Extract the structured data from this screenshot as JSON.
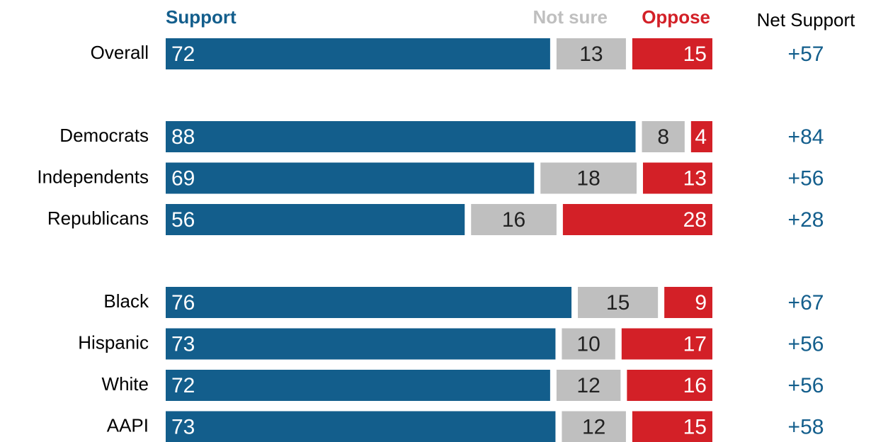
{
  "chart_data": {
    "type": "stacked-bar-horizontal",
    "categories": [
      "Overall",
      null,
      "Democrats",
      "Independents",
      "Republicans",
      null,
      "Black",
      "Hispanic",
      "White",
      "AAPI"
    ],
    "series": [
      {
        "name": "Support",
        "color": "#135e8c",
        "values": [
          72,
          null,
          88,
          69,
          56,
          null,
          76,
          73,
          72,
          73
        ]
      },
      {
        "name": "Not sure",
        "color": "#bfbfbf",
        "values": [
          13,
          null,
          8,
          18,
          16,
          null,
          15,
          10,
          12,
          12
        ]
      },
      {
        "name": "Oppose",
        "color": "#d32027",
        "values": [
          15,
          null,
          4,
          13,
          28,
          null,
          9,
          17,
          16,
          15
        ]
      }
    ],
    "net": {
      "name": "Net Support",
      "color": "#135e8c",
      "values": [
        57,
        null,
        84,
        56,
        28,
        null,
        67,
        56,
        56,
        58
      ],
      "value_labels": [
        "+57",
        null,
        "+84",
        "+56",
        "+28",
        null,
        "+67",
        "+56",
        "+56",
        "+58"
      ]
    },
    "xlim": [
      0,
      100
    ]
  }
}
